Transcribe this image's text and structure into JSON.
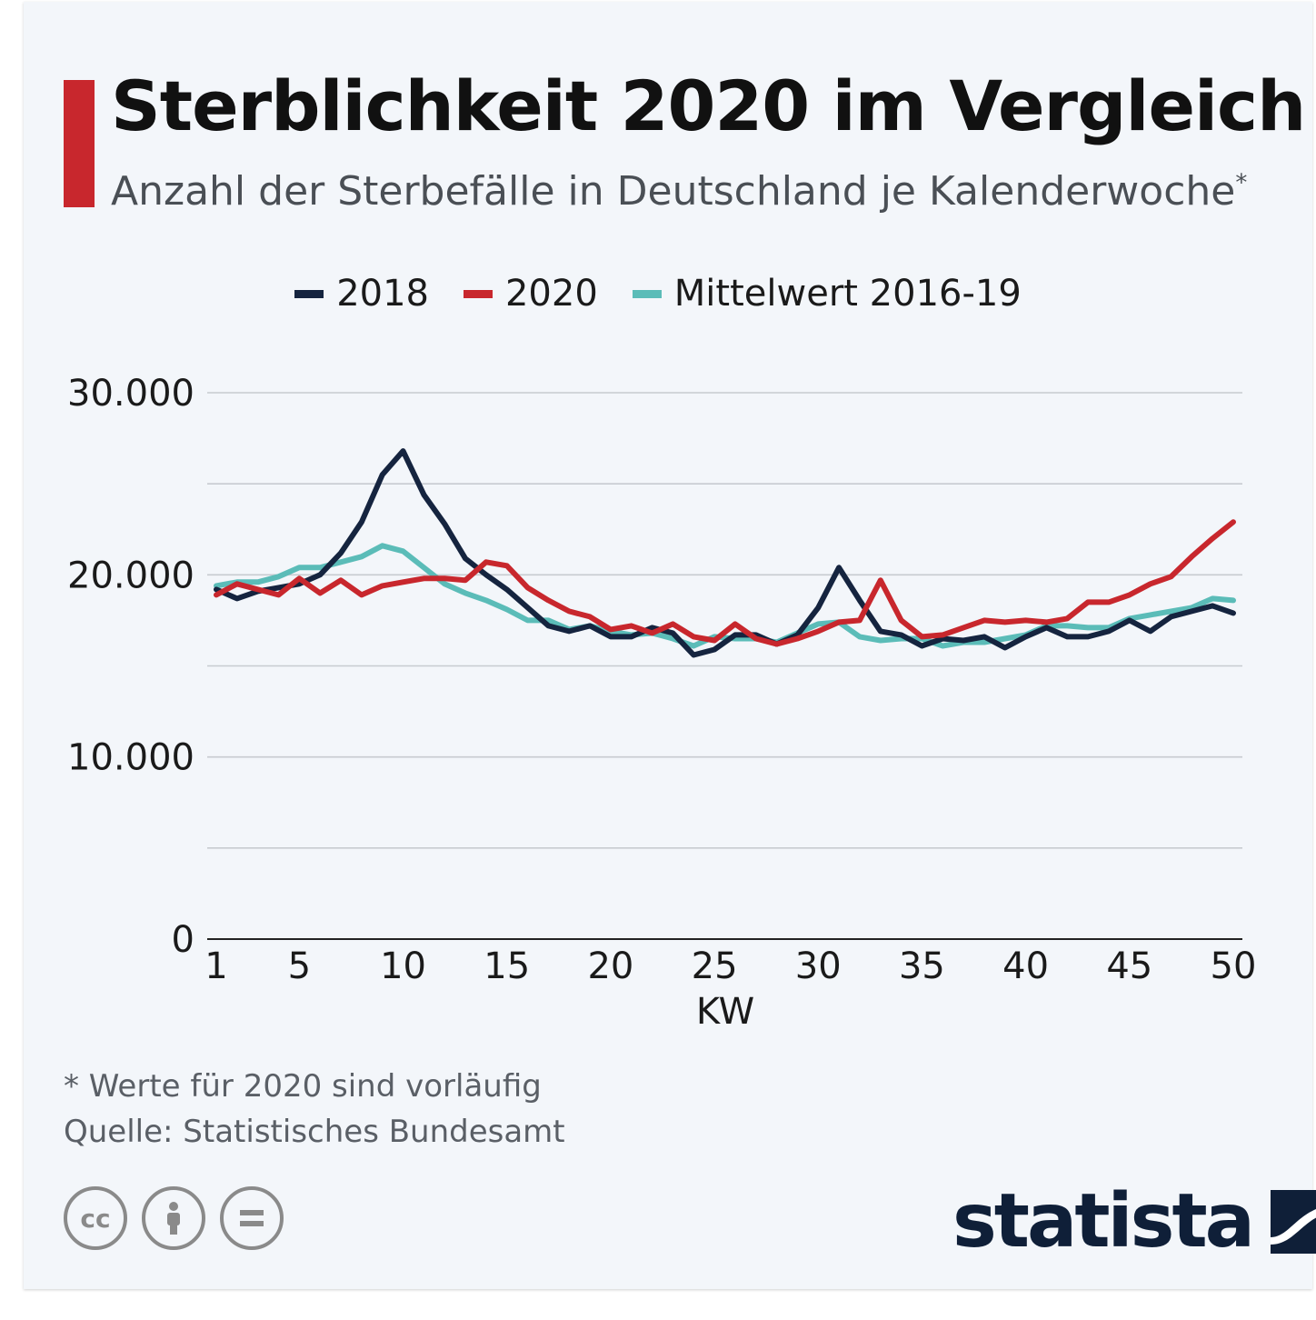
{
  "header": {
    "title": "Sterblichkeit 2020 im Vergleich",
    "subtitle": "Anzahl der Sterbefälle in Deutschland je Kalenderwoche",
    "subtitle_mark": "*"
  },
  "colors": {
    "accent": "#c8272d",
    "s2018": "#15243f",
    "s2020": "#c8272d",
    "mean": "#5bbcb8",
    "grid": "#c7cbd0"
  },
  "chart_data": {
    "type": "line",
    "title": "Sterblichkeit 2020 im Vergleich",
    "xlabel": "KW",
    "ylabel": "",
    "xlim": [
      1,
      50
    ],
    "ylim": [
      0,
      30000
    ],
    "y_ticks": [
      0,
      10000,
      20000,
      30000
    ],
    "y_tick_labels": [
      "0",
      "10.000",
      "20.000",
      "30.000"
    ],
    "x_ticks": [
      1,
      5,
      10,
      15,
      20,
      25,
      30,
      35,
      40,
      45,
      50
    ],
    "x_tick_labels": [
      "1",
      "5",
      "10",
      "15",
      "20",
      "25",
      "30",
      "35",
      "40",
      "45",
      "50"
    ],
    "grid": true,
    "legend_position": "top-center",
    "x": [
      1,
      2,
      3,
      4,
      5,
      6,
      7,
      8,
      9,
      10,
      11,
      12,
      13,
      14,
      15,
      16,
      17,
      18,
      19,
      20,
      21,
      22,
      23,
      24,
      25,
      26,
      27,
      28,
      29,
      30,
      31,
      32,
      33,
      34,
      35,
      36,
      37,
      38,
      39,
      40,
      41,
      42,
      43,
      44,
      45,
      46,
      47,
      48,
      49,
      50
    ],
    "series": [
      {
        "name": "2018",
        "values": [
          19200,
          18700,
          19100,
          19300,
          19500,
          20000,
          21200,
          22900,
          25500,
          26800,
          24400,
          22800,
          20900,
          20000,
          19200,
          18200,
          17200,
          16900,
          17200,
          16600,
          16600,
          17100,
          16800,
          15600,
          15900,
          16700,
          16700,
          16200,
          16700,
          18200,
          20400,
          18600,
          16900,
          16700,
          16100,
          16500,
          16400,
          16600,
          16000,
          16600,
          17100,
          16600,
          16600,
          16900,
          17500,
          16900,
          17700,
          18000,
          18300,
          17900
        ]
      },
      {
        "name": "2020",
        "values": [
          18900,
          19500,
          19200,
          18900,
          19800,
          19000,
          19700,
          18900,
          19400,
          19600,
          19800,
          19800,
          19700,
          20700,
          20500,
          19300,
          18600,
          18000,
          17700,
          17000,
          17200,
          16800,
          17300,
          16600,
          16400,
          17300,
          16500,
          16200,
          16500,
          16900,
          17400,
          17500,
          19700,
          17500,
          16600,
          16700,
          17100,
          17500,
          17400,
          17500,
          17400,
          17600,
          18500,
          18500,
          18900,
          19500,
          19900,
          21000,
          22000,
          22900
        ]
      },
      {
        "name": "Mittelwert 2016-19",
        "values": [
          19400,
          19600,
          19600,
          19900,
          20400,
          20400,
          20700,
          21000,
          21600,
          21300,
          20400,
          19500,
          19000,
          18600,
          18100,
          17500,
          17500,
          17000,
          17200,
          16900,
          16700,
          16800,
          16500,
          16100,
          16600,
          16500,
          16500,
          16300,
          16800,
          17300,
          17400,
          16600,
          16400,
          16500,
          16500,
          16100,
          16300,
          16300,
          16500,
          16700,
          17200,
          17200,
          17100,
          17100,
          17600,
          17800,
          18000,
          18200,
          18700,
          18600
        ]
      }
    ]
  },
  "legend": {
    "items": [
      {
        "label": "2018"
      },
      {
        "label": "2020"
      },
      {
        "label": "Mittelwert 2016-19"
      }
    ]
  },
  "footer": {
    "note": "* Werte für 2020 sind vorläufig",
    "source": "Quelle: Statistisches Bundesamt",
    "brand": "statista",
    "icons": [
      "creative-commons-icon",
      "attribution-icon",
      "no-derivatives-icon"
    ]
  }
}
